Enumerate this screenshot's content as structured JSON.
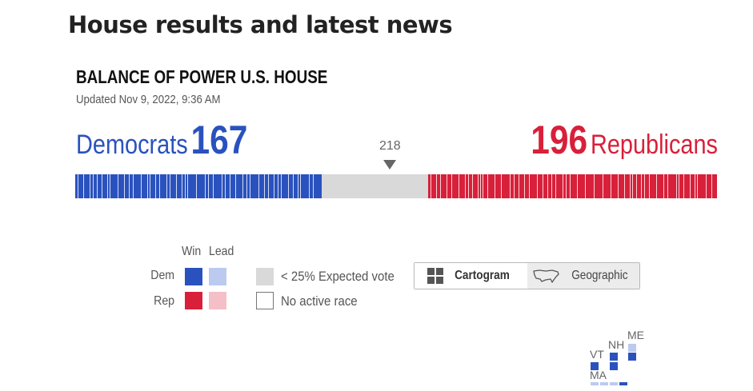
{
  "page_heading": "House results and latest news",
  "balance": {
    "title": "BALANCE OF POWER U.S. HOUSE",
    "updated": "Updated Nov 9, 2022, 9:36 AM",
    "dem": {
      "name": "Democrats",
      "count": "167",
      "seats": 167,
      "color": "#2a52be"
    },
    "rep": {
      "name": "Republicans",
      "count": "196",
      "seats": 196,
      "color": "#d8203a"
    },
    "majority_label": "218",
    "total_seats": 435
  },
  "legend": {
    "win_label": "Win",
    "lead_label": "Lead",
    "dem_label": "Dem",
    "rep_label": "Rep",
    "expected_vote_label": "< 25% Expected vote",
    "no_active_label": "No active race",
    "colors": {
      "dem_win": "#2a52be",
      "dem_lead": "#bccaf0",
      "rep_win": "#d8203a",
      "rep_lead": "#f4bfc6",
      "expected": "#d9d9d9",
      "no_active": "#ffffff"
    }
  },
  "view_toggle": {
    "cartogram_label": "Cartogram",
    "geographic_label": "Geographic",
    "active": "Cartogram"
  },
  "cartogram": {
    "labels": {
      "vt": "VT",
      "nh": "NH",
      "me": "ME",
      "ma": "MA"
    }
  }
}
